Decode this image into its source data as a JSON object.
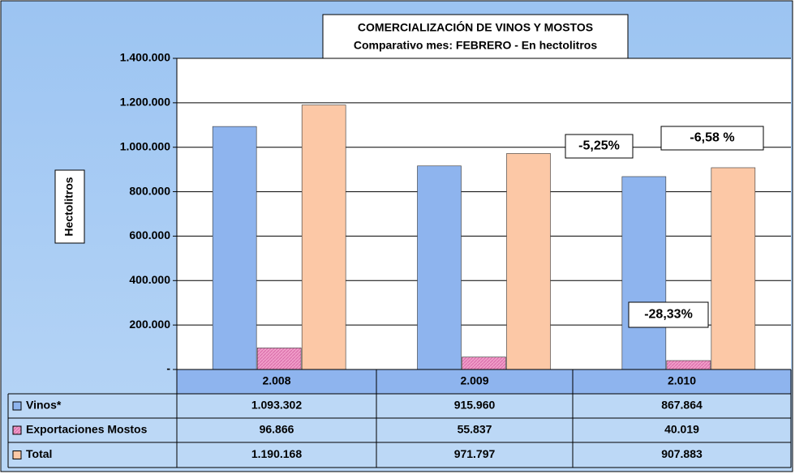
{
  "chart_data": {
    "type": "bar",
    "title": "COMERCIALIZACIÓN DE VINOS Y MOSTOS",
    "subtitle": "Comparativo mes: FEBRERO - En hectolitros",
    "y_label": "Hectolitros",
    "categories": [
      "2.008",
      "2.009",
      "2.010"
    ],
    "series": [
      {
        "name": "Vinos*",
        "color": "#8eb4ee",
        "values": [
          1093302,
          915960,
          867864
        ],
        "value_labels": [
          "1.093.302",
          "915.960",
          "867.864"
        ]
      },
      {
        "name": "Exportaciones Mostos",
        "color": "#f09cc8",
        "values": [
          96866,
          55837,
          40019
        ],
        "value_labels": [
          "96.866",
          "55.837",
          "40.019"
        ]
      },
      {
        "name": "Total",
        "color": "#fcc8a6",
        "values": [
          1190168,
          971797,
          907883
        ],
        "value_labels": [
          "1.190.168",
          "971.797",
          "907.883"
        ]
      }
    ],
    "ylim": [
      0,
      1400000
    ],
    "yticks": [
      {
        "value": 0,
        "label": "-"
      },
      {
        "value": 200000,
        "label": "200.000"
      },
      {
        "value": 400000,
        "label": "400.000"
      },
      {
        "value": 600000,
        "label": "600.000"
      },
      {
        "value": 800000,
        "label": "800.000"
      },
      {
        "value": 1000000,
        "label": "1.000.000"
      },
      {
        "value": 1200000,
        "label": "1.200.000"
      },
      {
        "value": 1400000,
        "label": "1.400.000"
      }
    ],
    "grid": true,
    "annotations": [
      "-5,25%",
      "-6,58 %",
      "-28,33%"
    ]
  }
}
